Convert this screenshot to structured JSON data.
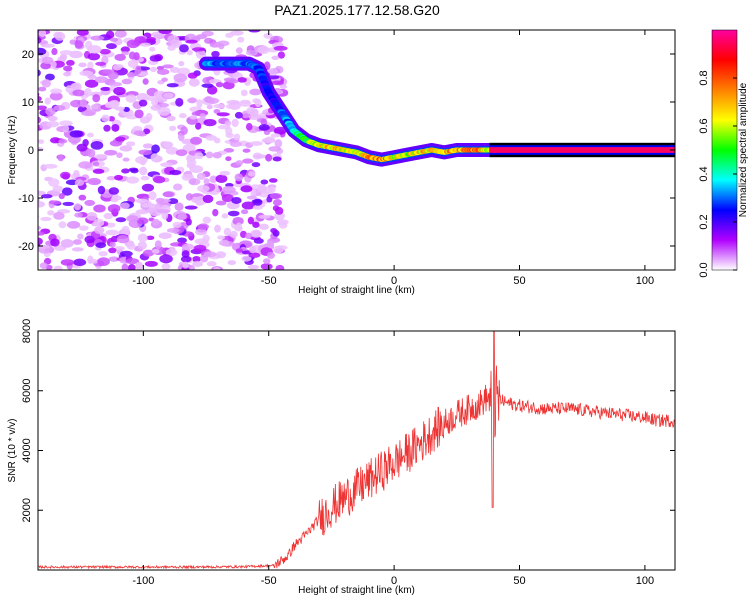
{
  "title": "PAZ1.2025.177.12.58.G20",
  "chart_data": [
    {
      "type": "heatmap",
      "xlabel": "Height of straight line (km)",
      "ylabel": "Frequency (Hz)",
      "xlim": [
        -142,
        112
      ],
      "ylim": [
        -25,
        25
      ],
      "xticks": [
        -100,
        -50,
        0,
        50,
        100
      ],
      "yticks": [
        -20,
        -10,
        0,
        10,
        20
      ],
      "xtick_labels": [
        "-100",
        "-50",
        "0",
        "50",
        "100"
      ],
      "ytick_labels": [
        "-20",
        "-10",
        "0",
        "10",
        "20"
      ],
      "colorbar": {
        "label": "Normalized spectral amplitude",
        "range": [
          0,
          1
        ],
        "ticks": [
          0.0,
          0.2,
          0.4,
          0.6,
          0.8
        ],
        "tick_labels": [
          "0.0",
          "0.2",
          "0.4",
          "0.6",
          "0.8"
        ],
        "colors": [
          "#ffffff",
          "#b000ff",
          "#0000ff",
          "#00ffff",
          "#00ff00",
          "#ffff00",
          "#ff8000",
          "#ff0000",
          "#ff00a0"
        ]
      },
      "noise_region_x": [
        -142,
        -48
      ],
      "ridge": {
        "x": [
          -75,
          -65,
          -58,
          -54,
          -50,
          -45,
          -40,
          -35,
          -30,
          -25,
          -20,
          -15,
          -10,
          -5,
          0,
          5,
          10,
          15,
          20,
          25,
          30,
          35,
          38,
          45,
          60,
          80,
          100,
          112
        ],
        "y": [
          18,
          18,
          18,
          17,
          12,
          8,
          4,
          2,
          1,
          0.5,
          0,
          -0.5,
          -1.5,
          -2,
          -1.5,
          -1,
          -0.5,
          0,
          -0.5,
          0,
          0,
          0,
          0,
          0,
          0,
          0,
          0,
          0
        ],
        "amplitude": [
          0.35,
          0.3,
          0.35,
          0.3,
          0.25,
          0.3,
          0.4,
          0.55,
          0.7,
          0.75,
          0.7,
          0.65,
          0.8,
          0.85,
          0.7,
          0.65,
          0.75,
          0.7,
          0.8,
          0.75,
          0.85,
          0.8,
          0.6,
          0.95,
          0.95,
          0.95,
          0.95,
          0.95
        ]
      },
      "grid": false
    },
    {
      "type": "line",
      "xlabel": "Height of straight line (km)",
      "ylabel": "SNR (10 * v/v)",
      "xlim": [
        -142,
        112
      ],
      "ylim": [
        0,
        8000
      ],
      "xticks": [
        -100,
        -50,
        0,
        50,
        100
      ],
      "yticks": [
        2000,
        4000,
        6000,
        8000
      ],
      "xtick_labels": [
        "-100",
        "-50",
        "0",
        "50",
        "100"
      ],
      "ytick_labels": [
        "2000",
        "4000",
        "6000",
        "8000"
      ],
      "color": "#ee3333",
      "series": [
        {
          "x": [
            -142,
            -120,
            -100,
            -80,
            -60,
            -48,
            -45,
            -42,
            -40,
            -35,
            -30,
            -25,
            -20,
            -15,
            -10,
            -5,
            0,
            5,
            10,
            15,
            20,
            25,
            30,
            35,
            37,
            39,
            40,
            42,
            45,
            50,
            60,
            70,
            80,
            90,
            100,
            105,
            112
          ],
          "y": [
            100,
            100,
            100,
            100,
            110,
            150,
            300,
            500,
            800,
            1200,
            1700,
            2100,
            2400,
            2700,
            3000,
            3300,
            3600,
            3900,
            4200,
            4600,
            4900,
            5200,
            5400,
            5600,
            5800,
            5500,
            5500,
            5700,
            5600,
            5500,
            5400,
            5400,
            5300,
            5200,
            5100,
            5000,
            5000
          ]
        }
      ],
      "grid": false
    }
  ]
}
